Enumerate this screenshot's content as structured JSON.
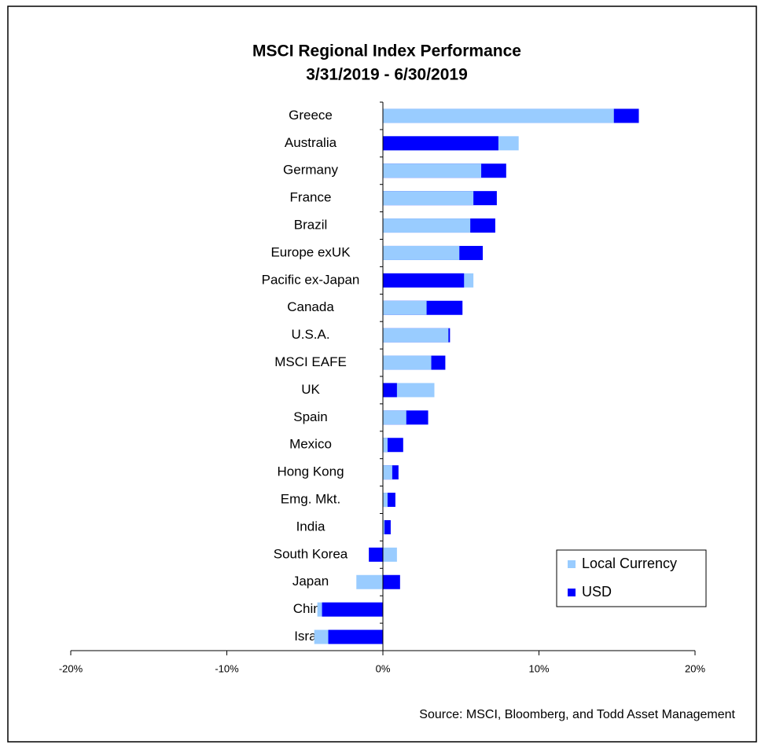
{
  "chart_data": {
    "type": "bar",
    "orientation": "horizontal",
    "overlap": true,
    "title": "MSCI Regional Index Performance",
    "subtitle": "3/31/2019 - 6/30/2019",
    "source": "Source: MSCI, Bloomberg, and Todd Asset Management",
    "categories": [
      "Greece",
      "Australia",
      "Germany",
      "France",
      "Brazil",
      "Europe exUK",
      "Pacific ex-Japan",
      "Canada",
      "U.S.A.",
      "MSCI EAFE",
      "UK",
      "Spain",
      "Mexico",
      "Hong Kong",
      "Emg. Mkt.",
      "India",
      "South Korea",
      "Japan",
      "China",
      "Israel"
    ],
    "series": [
      {
        "name": "Local Currency",
        "color": "#99ccff",
        "values": [
          14.8,
          8.7,
          6.3,
          5.8,
          5.6,
          4.9,
          5.8,
          2.8,
          4.2,
          3.1,
          3.3,
          1.5,
          0.3,
          0.6,
          0.3,
          0.1,
          0.9,
          -1.7,
          -4.2,
          -4.4
        ]
      },
      {
        "name": "USD",
        "color": "#0000ff",
        "values": [
          16.4,
          7.4,
          7.9,
          7.3,
          7.2,
          6.4,
          5.2,
          5.1,
          4.3,
          4.0,
          0.9,
          2.9,
          1.3,
          1.0,
          0.8,
          0.5,
          -0.9,
          1.1,
          -3.9,
          -3.5
        ]
      }
    ],
    "xlim": [
      -20,
      20
    ],
    "xticks": [
      {
        "value": -20,
        "label": "-20%"
      },
      {
        "value": -10,
        "label": "-10%"
      },
      {
        "value": 0,
        "label": "0%"
      },
      {
        "value": 10,
        "label": "10%"
      },
      {
        "value": 20,
        "label": "20%"
      }
    ],
    "legend": "lower right"
  }
}
